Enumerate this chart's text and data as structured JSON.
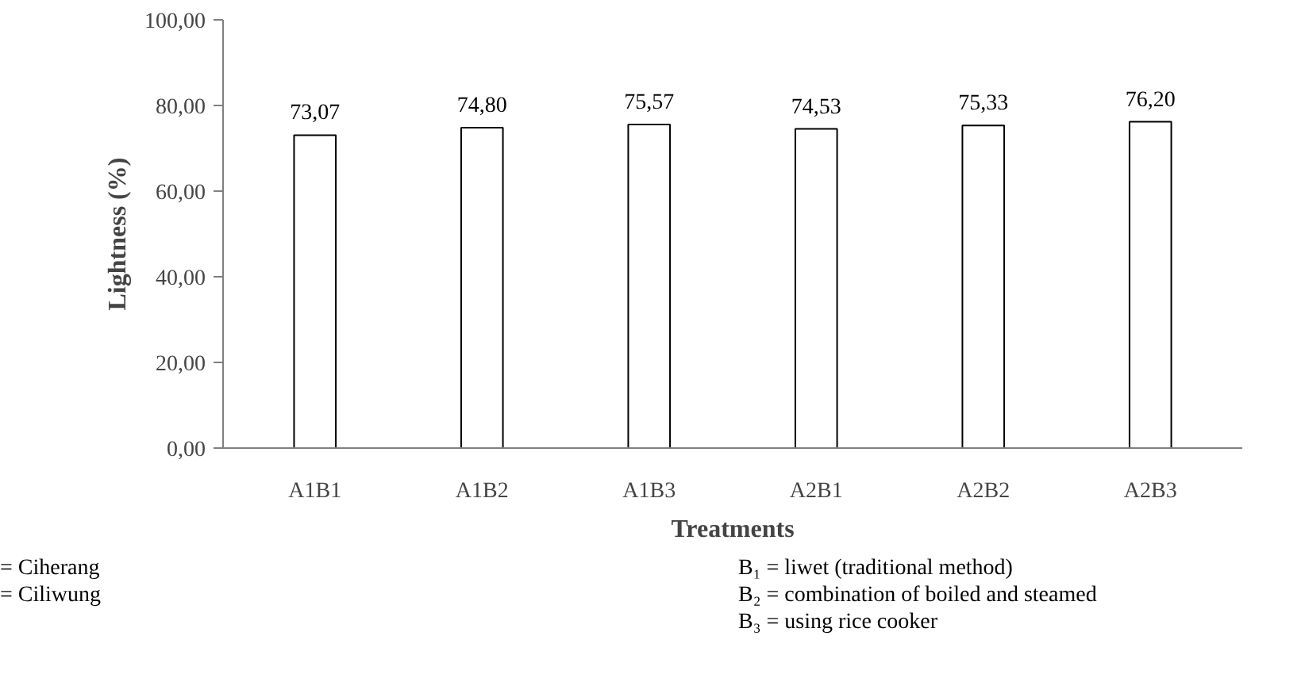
{
  "chart_data": {
    "type": "bar",
    "xlabel": "Treatments",
    "ylabel": "Lightness (%)",
    "categories": [
      "A1B1",
      "A1B2",
      "A1B3",
      "A2B1",
      "A2B2",
      "A2B3"
    ],
    "values": [
      73.07,
      74.8,
      75.57,
      74.53,
      75.33,
      76.2
    ],
    "value_labels": [
      "73,07",
      "74,80",
      "75,57",
      "74,53",
      "75,33",
      "76,20"
    ],
    "color": "#ffffff",
    "ylim": [
      0,
      100
    ],
    "yticks": [
      {
        "value": 0,
        "label": "0,00"
      },
      {
        "value": 20,
        "label": "20,00"
      },
      {
        "value": 40,
        "label": "40,00"
      },
      {
        "value": 60,
        "label": "60,00"
      },
      {
        "value": 80,
        "label": "80,00"
      },
      {
        "value": 100,
        "label": "100,00"
      }
    ],
    "grid": false,
    "annotations": [
      "= Ciherang",
      "= Ciliwung",
      "B₁ = liwet (traditional method)",
      "B₂ = combination of boiled and steamed",
      "B₃ = using rice cooker"
    ]
  }
}
